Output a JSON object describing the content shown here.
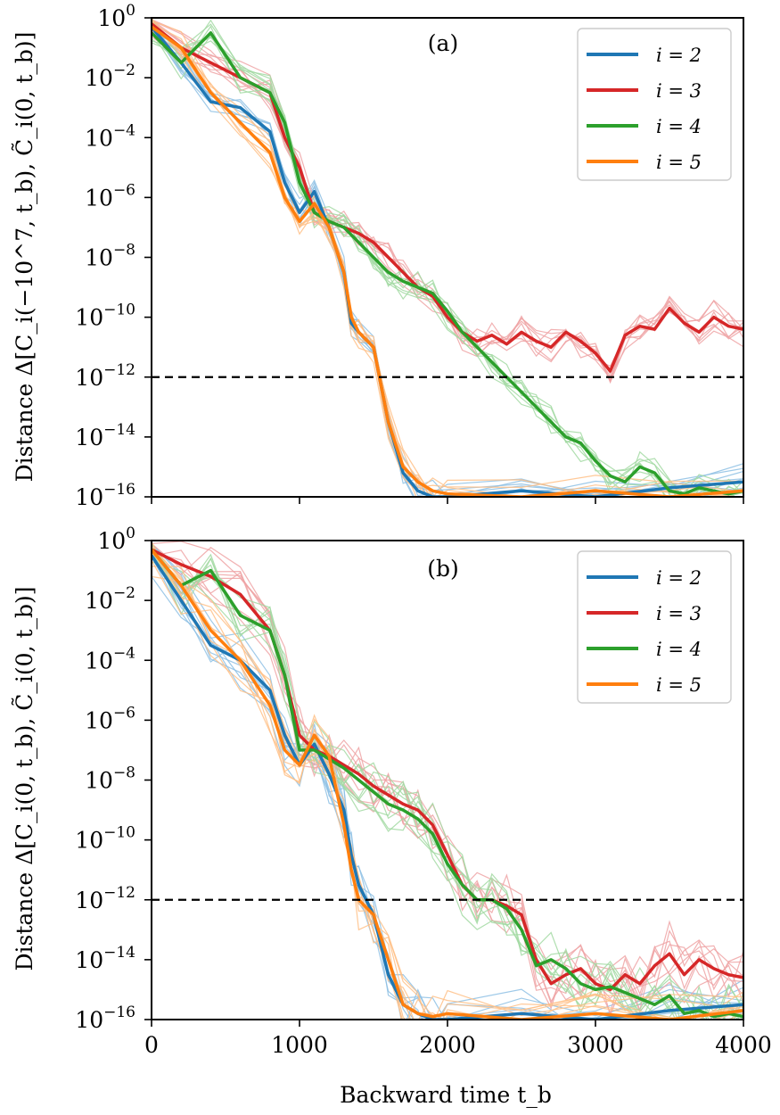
{
  "chart_data": [
    {
      "type": "line",
      "panel_label": "(a)",
      "ylabel": "Distance Δ[C_i(−10^7, t_b), C̃_i(0, t_b)]",
      "xlabel": "",
      "xlim": [
        0,
        4000
      ],
      "ylim_log10": [
        -16,
        0
      ],
      "yscale": "log",
      "xticks": [
        0,
        1000,
        2000,
        3000,
        4000
      ],
      "xtick_labels_shown": false,
      "yticks_log10": [
        0,
        -2,
        -4,
        -6,
        -8,
        -10,
        -12,
        -14,
        -16
      ],
      "threshold_log10": -12,
      "legend": {
        "placement": "top-right",
        "entries": [
          "i = 2",
          "i = 3",
          "i = 4",
          "i = 5"
        ]
      },
      "series": [
        {
          "name": "i = 2",
          "color": "#1f77b4",
          "light_color": "#8dc0e4",
          "x": [
            0,
            200,
            400,
            600,
            800,
            900,
            1000,
            1100,
            1200,
            1300,
            1350,
            1400,
            1500,
            1600,
            1700,
            1800,
            1900,
            2000,
            2500,
            3000,
            3500,
            4000
          ],
          "log10_y": [
            -0.3,
            -1.5,
            -2.8,
            -3.0,
            -3.8,
            -5.5,
            -6.5,
            -5.8,
            -7.0,
            -8.5,
            -10.2,
            -10.5,
            -11.0,
            -13.5,
            -15.2,
            -15.8,
            -16,
            -16,
            -15.8,
            -16,
            -15.7,
            -15.5
          ]
        },
        {
          "name": "i = 3",
          "color": "#d62728",
          "light_color": "#efa3a4",
          "x": [
            0,
            200,
            400,
            600,
            800,
            900,
            1000,
            1100,
            1200,
            1300,
            1400,
            1500,
            1600,
            1700,
            1800,
            1900,
            2000,
            2100,
            2200,
            2300,
            2400,
            2500,
            2600,
            2700,
            2800,
            2900,
            3000,
            3100,
            3200,
            3300,
            3400,
            3500,
            3600,
            3700,
            3800,
            3900,
            4000
          ],
          "log10_y": [
            -0.2,
            -1.0,
            -1.5,
            -2.0,
            -2.5,
            -4.0,
            -5.0,
            -6.5,
            -6.8,
            -7.0,
            -7.2,
            -7.5,
            -8.0,
            -8.5,
            -9.0,
            -9.3,
            -10.0,
            -10.5,
            -10.8,
            -10.6,
            -10.9,
            -10.5,
            -10.8,
            -11.0,
            -10.5,
            -10.8,
            -11.2,
            -11.8,
            -10.6,
            -10.3,
            -10.4,
            -9.7,
            -10.2,
            -10.5,
            -10.0,
            -10.3,
            -10.4
          ]
        },
        {
          "name": "i = 4",
          "color": "#2ca02c",
          "light_color": "#a2d9a2",
          "x": [
            0,
            200,
            400,
            600,
            800,
            900,
            1000,
            1100,
            1200,
            1300,
            1400,
            1500,
            1600,
            1700,
            1800,
            1900,
            2000,
            2100,
            2200,
            2300,
            2400,
            2500,
            2600,
            2700,
            2800,
            2900,
            3000,
            3100,
            3200,
            3300,
            3400,
            3500,
            3600,
            3700,
            3800,
            3900,
            4000
          ],
          "log10_y": [
            -0.5,
            -1.5,
            -0.5,
            -2.0,
            -2.5,
            -3.5,
            -5.5,
            -6.5,
            -6.8,
            -7.0,
            -7.5,
            -8.0,
            -8.5,
            -8.8,
            -9.0,
            -9.2,
            -9.8,
            -10.5,
            -11.0,
            -11.5,
            -12.0,
            -12.5,
            -13.0,
            -13.5,
            -14.0,
            -14.2,
            -14.8,
            -15.3,
            -15.5,
            -15.0,
            -15.2,
            -15.8,
            -15.9,
            -15.7,
            -15.8,
            -15.9,
            -15.8
          ]
        },
        {
          "name": "i = 5",
          "color": "#ff7f0e",
          "light_color": "#ffbf86",
          "x": [
            0,
            200,
            400,
            600,
            800,
            900,
            1000,
            1100,
            1200,
            1300,
            1350,
            1400,
            1500,
            1600,
            1700,
            1800,
            1900,
            2000,
            2500,
            3000,
            3500,
            4000
          ],
          "log10_y": [
            -0.3,
            -1.0,
            -2.5,
            -3.5,
            -4.5,
            -6.0,
            -6.8,
            -6.2,
            -7.0,
            -8.5,
            -10.0,
            -10.5,
            -11.0,
            -13.5,
            -15.0,
            -15.5,
            -15.8,
            -15.9,
            -16,
            -15.8,
            -16,
            -15.8
          ]
        }
      ]
    },
    {
      "type": "line",
      "panel_label": "(b)",
      "ylabel": "Distance Δ[C_i(0, t_b), C̃_i(0, t_b)]",
      "xlabel": "Backward time t_b",
      "xlim": [
        0,
        4000
      ],
      "ylim_log10": [
        -16,
        0
      ],
      "yscale": "log",
      "xticks": [
        0,
        1000,
        2000,
        3000,
        4000
      ],
      "xtick_labels_shown": true,
      "yticks_log10": [
        0,
        -2,
        -4,
        -6,
        -8,
        -10,
        -12,
        -14,
        -16
      ],
      "threshold_log10": -12,
      "legend": {
        "placement": "top-right",
        "entries": [
          "i = 2",
          "i = 3",
          "i = 4",
          "i = 5"
        ]
      },
      "series": [
        {
          "name": "i = 2",
          "color": "#1f77b4",
          "light_color": "#8dc0e4",
          "x": [
            0,
            200,
            400,
            600,
            800,
            900,
            1000,
            1100,
            1200,
            1300,
            1350,
            1400,
            1500,
            1600,
            1700,
            1800,
            1900,
            2000,
            2500,
            3000,
            3500,
            4000
          ],
          "log10_y": [
            -0.5,
            -2.0,
            -3.5,
            -4.0,
            -5.0,
            -6.5,
            -7.5,
            -6.8,
            -7.8,
            -9.0,
            -10.5,
            -11.5,
            -12.5,
            -14.5,
            -15.5,
            -15.8,
            -16,
            -16,
            -15.8,
            -16,
            -15.7,
            -15.5
          ]
        },
        {
          "name": "i = 3",
          "color": "#d62728",
          "light_color": "#efa3a4",
          "x": [
            0,
            200,
            400,
            600,
            800,
            900,
            1000,
            1100,
            1200,
            1300,
            1400,
            1500,
            1600,
            1700,
            1800,
            1900,
            2000,
            2100,
            2200,
            2300,
            2400,
            2500,
            2600,
            2700,
            2800,
            2900,
            3000,
            3100,
            3200,
            3300,
            3400,
            3500,
            3600,
            3700,
            3800,
            3900,
            4000
          ],
          "log10_y": [
            -0.3,
            -0.8,
            -1.2,
            -1.8,
            -3.0,
            -4.5,
            -6.5,
            -7.0,
            -7.2,
            -7.5,
            -7.8,
            -8.2,
            -8.5,
            -8.8,
            -9.0,
            -9.5,
            -10.5,
            -11.5,
            -12.0,
            -12.0,
            -12.2,
            -12.5,
            -14.0,
            -14.8,
            -14.5,
            -14.3,
            -14.8,
            -15.0,
            -14.5,
            -14.8,
            -14.2,
            -13.8,
            -14.5,
            -14.0,
            -14.3,
            -14.5,
            -14.6
          ]
        },
        {
          "name": "i = 4",
          "color": "#2ca02c",
          "light_color": "#a2d9a2",
          "x": [
            0,
            200,
            400,
            600,
            800,
            900,
            1000,
            1100,
            1200,
            1300,
            1400,
            1500,
            1600,
            1700,
            1800,
            1900,
            2000,
            2100,
            2200,
            2300,
            2400,
            2500,
            2600,
            2700,
            2800,
            2900,
            3000,
            3100,
            3200,
            3300,
            3400,
            3500,
            3600,
            3700,
            3800,
            3900,
            4000
          ],
          "log10_y": [
            -0.3,
            -1.5,
            -1.0,
            -2.5,
            -3.0,
            -4.5,
            -7.0,
            -7.0,
            -7.3,
            -7.6,
            -8.0,
            -8.4,
            -8.8,
            -9.0,
            -9.3,
            -9.8,
            -10.8,
            -11.5,
            -12.0,
            -12.0,
            -12.3,
            -13.0,
            -14.2,
            -14.0,
            -14.3,
            -14.8,
            -15.0,
            -14.9,
            -15.1,
            -15.3,
            -15.5,
            -15.2,
            -15.8,
            -15.7,
            -15.9,
            -15.8,
            -15.9
          ]
        },
        {
          "name": "i = 5",
          "color": "#ff7f0e",
          "light_color": "#ffbf86",
          "x": [
            0,
            200,
            400,
            600,
            800,
            900,
            1000,
            1100,
            1200,
            1300,
            1350,
            1400,
            1500,
            1600,
            1700,
            1800,
            1900,
            2000,
            2500,
            3000,
            3500,
            4000
          ],
          "log10_y": [
            -0.3,
            -1.5,
            -3.0,
            -4.0,
            -5.5,
            -7.0,
            -7.5,
            -6.5,
            -7.2,
            -9.5,
            -11.0,
            -12.0,
            -12.5,
            -14.0,
            -15.5,
            -15.8,
            -15.9,
            -15.8,
            -16,
            -15.8,
            -16,
            -15.7
          ]
        }
      ]
    }
  ]
}
